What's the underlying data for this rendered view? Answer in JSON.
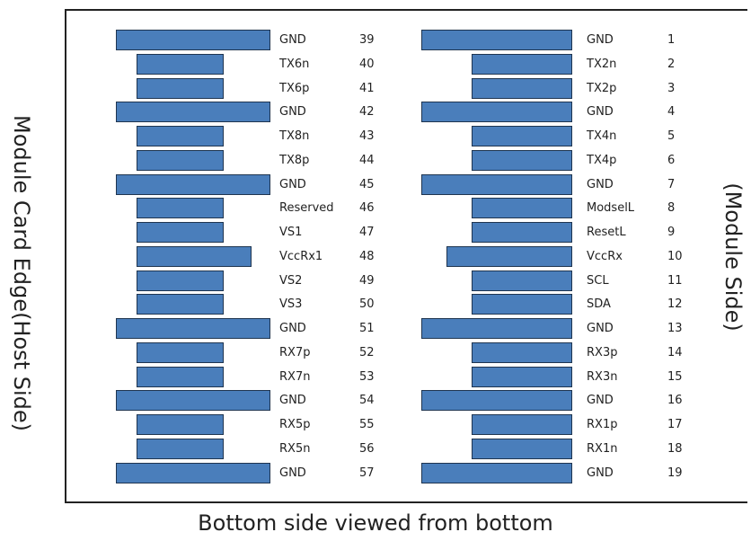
{
  "labels": {
    "left_side": "Module Card Edge(Host Side)",
    "right_side": "(Module Side)",
    "bottom_caption": "Bottom side viewed from bottom"
  },
  "left_column": [
    {
      "signal": "GND",
      "pin": "39",
      "long": true
    },
    {
      "signal": "TX6n",
      "pin": "40",
      "long": false
    },
    {
      "signal": "TX6p",
      "pin": "41",
      "long": false
    },
    {
      "signal": "GND",
      "pin": "42",
      "long": true
    },
    {
      "signal": "TX8n",
      "pin": "43",
      "long": false
    },
    {
      "signal": "TX8p",
      "pin": "44",
      "long": false
    },
    {
      "signal": "GND",
      "pin": "45",
      "long": true
    },
    {
      "signal": "Reserved",
      "pin": "46",
      "long": false
    },
    {
      "signal": "VS1",
      "pin": "47",
      "long": false
    },
    {
      "signal": "VccRx1",
      "pin": "48",
      "long": false,
      "medium": true
    },
    {
      "signal": "VS2",
      "pin": "49",
      "long": false
    },
    {
      "signal": "VS3",
      "pin": "50",
      "long": false
    },
    {
      "signal": "GND",
      "pin": "51",
      "long": true
    },
    {
      "signal": "RX7p",
      "pin": "52",
      "long": false
    },
    {
      "signal": "RX7n",
      "pin": "53",
      "long": false
    },
    {
      "signal": "GND",
      "pin": "54",
      "long": true
    },
    {
      "signal": "RX5p",
      "pin": "55",
      "long": false
    },
    {
      "signal": "RX5n",
      "pin": "56",
      "long": false
    },
    {
      "signal": "GND",
      "pin": "57",
      "long": true
    }
  ],
  "right_column": [
    {
      "signal": "GND",
      "pin": "1",
      "long": true
    },
    {
      "signal": "TX2n",
      "pin": "2",
      "long": false
    },
    {
      "signal": "TX2p",
      "pin": "3",
      "long": false
    },
    {
      "signal": "GND",
      "pin": "4",
      "long": true
    },
    {
      "signal": "TX4n",
      "pin": "5",
      "long": false
    },
    {
      "signal": "TX4p",
      "pin": "6",
      "long": false
    },
    {
      "signal": "GND",
      "pin": "7",
      "long": true
    },
    {
      "signal": "ModselL",
      "pin": "8",
      "long": false
    },
    {
      "signal": "ResetL",
      "pin": "9",
      "long": false
    },
    {
      "signal": "VccRx",
      "pin": "10",
      "long": false,
      "medium": true
    },
    {
      "signal": "SCL",
      "pin": "11",
      "long": false
    },
    {
      "signal": "SDA",
      "pin": "12",
      "long": false
    },
    {
      "signal": "GND",
      "pin": "13",
      "long": true
    },
    {
      "signal": "RX3p",
      "pin": "14",
      "long": false
    },
    {
      "signal": "RX3n",
      "pin": "15",
      "long": false
    },
    {
      "signal": "GND",
      "pin": "16",
      "long": true
    },
    {
      "signal": "RX1p",
      "pin": "17",
      "long": false
    },
    {
      "signal": "RX1n",
      "pin": "18",
      "long": false
    },
    {
      "signal": "GND",
      "pin": "19",
      "long": true
    }
  ],
  "colors": {
    "pad_fill": "#4a7ebb",
    "pad_border": "#1f3550"
  }
}
